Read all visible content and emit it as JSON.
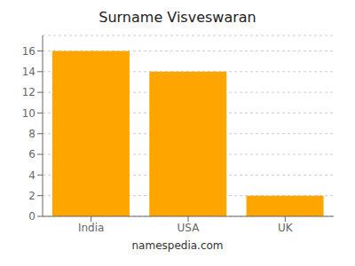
{
  "chart_data": {
    "type": "bar",
    "title": "Surname Visveswaran",
    "categories": [
      "India",
      "USA",
      "UK"
    ],
    "values": [
      16,
      14,
      2
    ],
    "color": "#FFA500",
    "ylim": [
      0,
      17.5
    ],
    "yticks": [
      0,
      2,
      4,
      6,
      8,
      10,
      12,
      14,
      16
    ],
    "grid": true,
    "annotations": [
      "namespedia.com"
    ]
  }
}
